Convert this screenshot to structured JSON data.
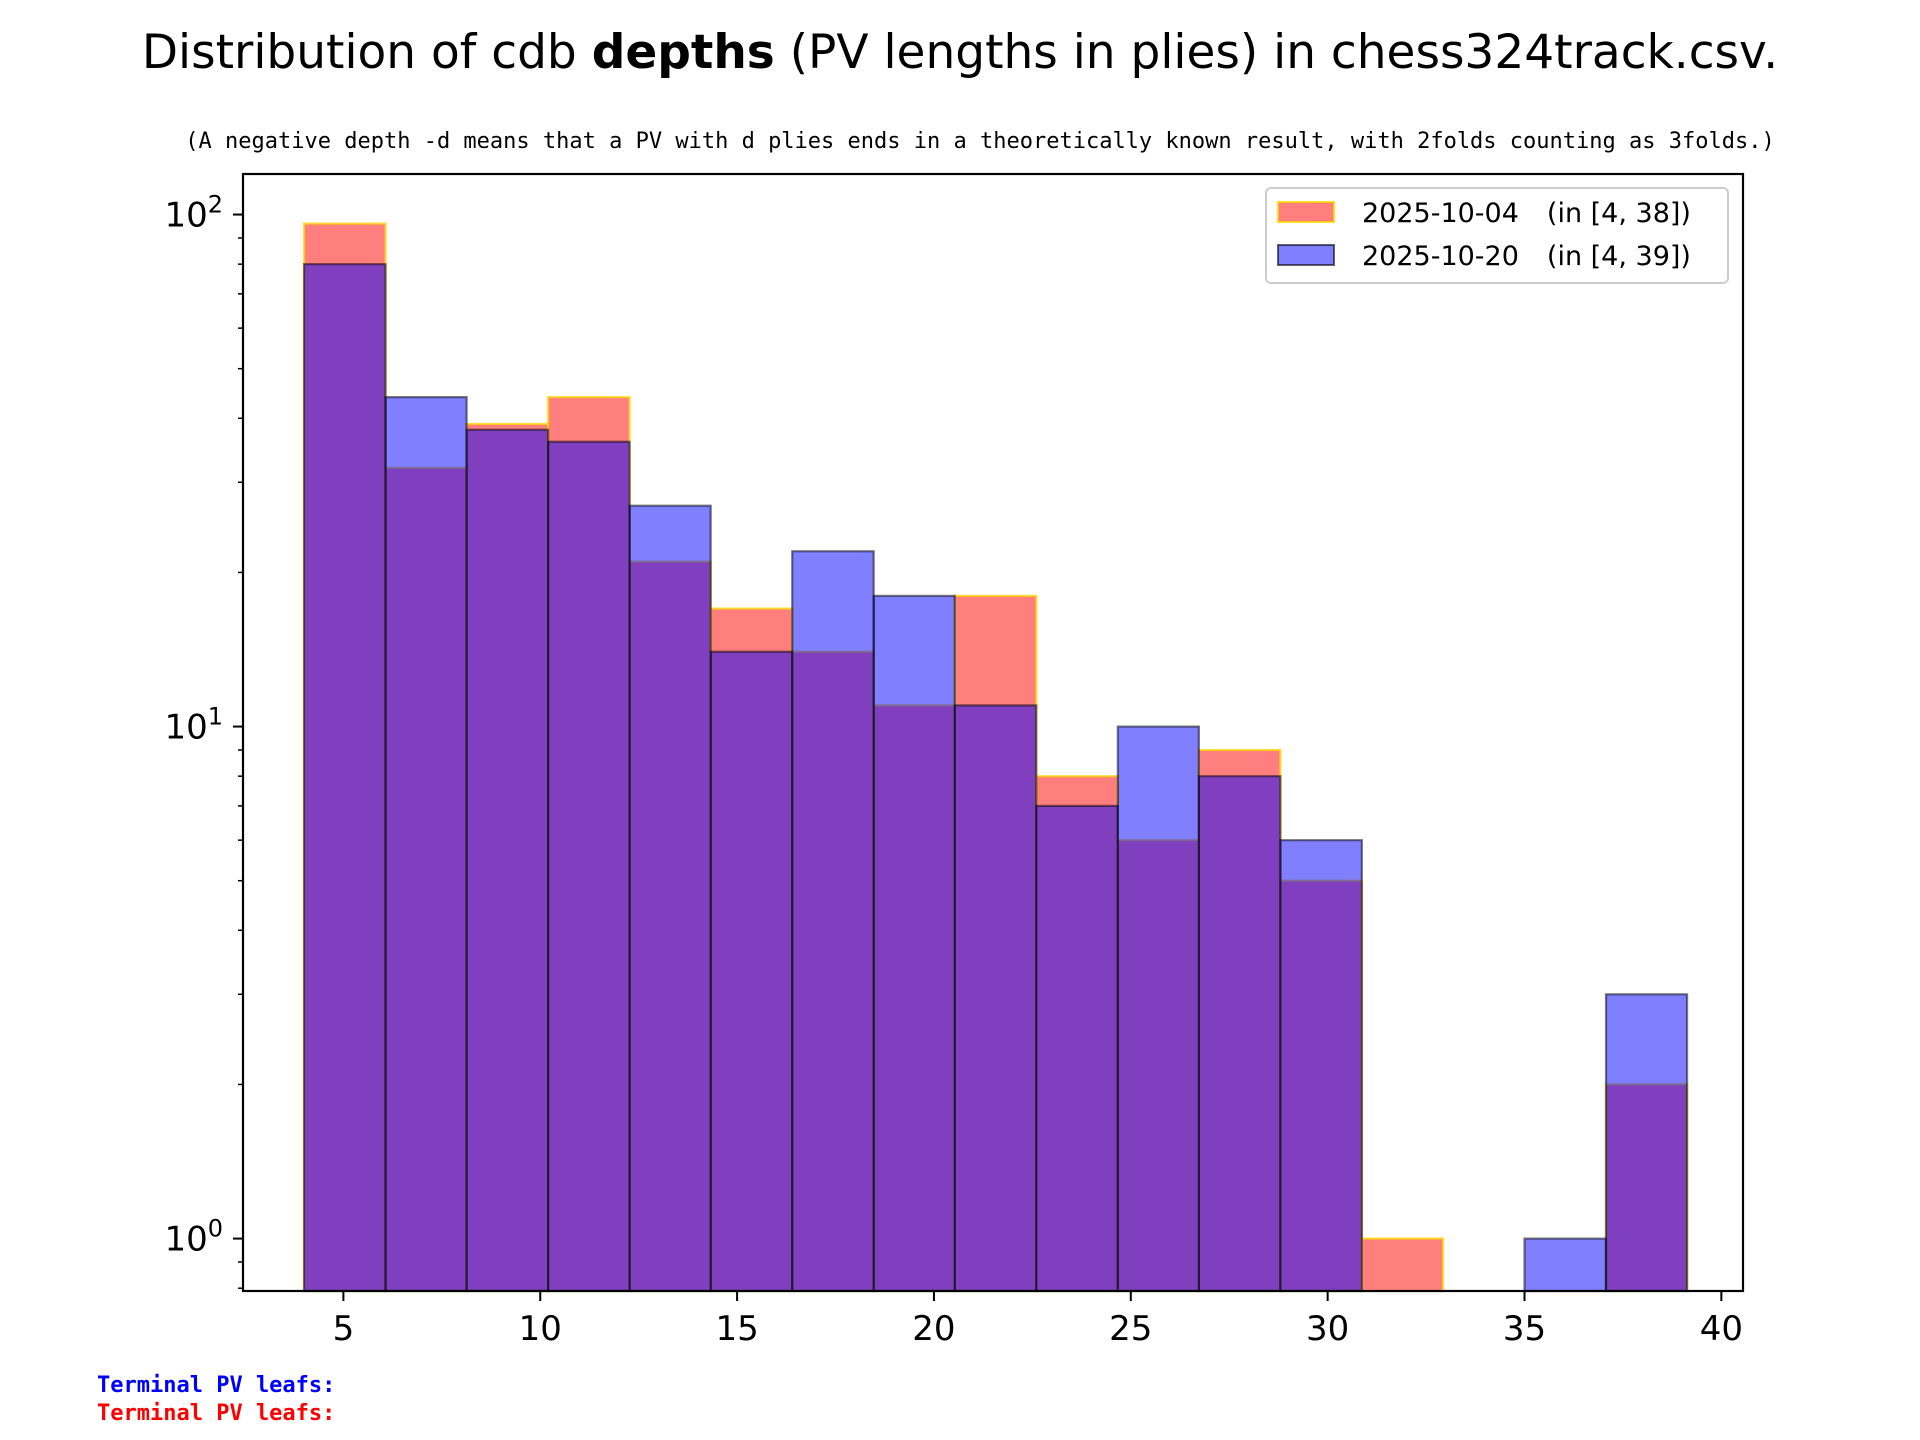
{
  "chart_data": {
    "type": "bar",
    "title_prefix": "Distribution of cdb ",
    "title_bold": "depths",
    "title_suffix": " (PV lengths in plies) in chess324track.csv.",
    "subtitle": "(A negative depth -d means that a PV with d plies ends in a theoretically known result, with 2folds counting as 3folds.)",
    "x_ticks": [
      "5",
      "10",
      "15",
      "20",
      "25",
      "30",
      "35",
      "40"
    ],
    "x_tick_values": [
      5,
      10,
      15,
      20,
      25,
      30,
      35,
      40
    ],
    "xlim": [
      2.45,
      40.55
    ],
    "yscale": "log",
    "ylim": [
      0.79,
      120
    ],
    "y_ticks": [
      {
        "value": 1,
        "base": "10",
        "exp": "0"
      },
      {
        "value": 10,
        "base": "10",
        "exp": "1"
      },
      {
        "value": 100,
        "base": "10",
        "exp": "2"
      }
    ],
    "bin_edges": [
      4,
      6.07,
      8.13,
      10.2,
      12.27,
      14.33,
      16.4,
      18.47,
      20.53,
      22.6,
      24.67,
      26.73,
      28.8,
      30.87,
      32.93,
      35,
      37.07,
      39.13
    ],
    "series": [
      {
        "name": "2025-10-04",
        "range_label": "(in [4, 38])",
        "color": "#ff0000",
        "edgecolor": "#ffd700",
        "values": [
          96,
          32,
          39,
          44,
          21,
          17,
          14,
          11,
          18,
          8,
          6,
          9,
          5,
          1,
          0,
          0,
          2
        ]
      },
      {
        "name": "2025-10-20",
        "range_label": "(in [4, 39])",
        "color": "#0000ff",
        "edgecolor": "#000000",
        "values": [
          80,
          44,
          38,
          36,
          27,
          14,
          22,
          18,
          11,
          7,
          10,
          8,
          6,
          0,
          0,
          1,
          3
        ]
      }
    ],
    "legend_position": "top-right",
    "grid": false
  },
  "footer": {
    "line1": "Terminal PV leafs:",
    "line1_color": "#0000ff",
    "line2": "Terminal PV leafs:",
    "line2_color": "#ff0000"
  }
}
